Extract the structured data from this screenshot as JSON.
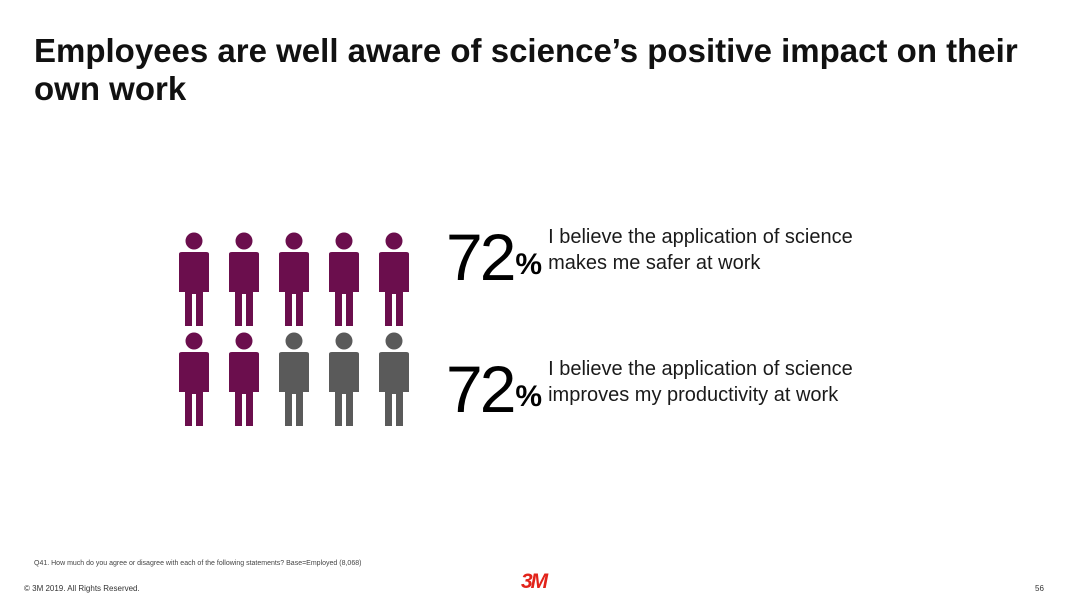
{
  "slide": {
    "title": "Employees are well aware of science’s positive impact on their own work"
  },
  "pictogram": {
    "total": 10,
    "highlighted": 7,
    "highlight_color": "#6b0e4d",
    "base_color": "#5a5a5a"
  },
  "stats": [
    {
      "value": "72",
      "unit": "%",
      "text": "I believe the application of science makes me safer at work"
    },
    {
      "value": "72",
      "unit": "%",
      "text": "I believe the application of science improves my productivity at work"
    }
  ],
  "footer": {
    "footnote": "Q41. How much do you agree or disagree with each of the following statements? Base=Employed (8,068)",
    "copyright": "© 3M 2019.    All Rights Reserved.",
    "logo": "3M",
    "logo_color": "#e2231a",
    "page_number": "56"
  }
}
